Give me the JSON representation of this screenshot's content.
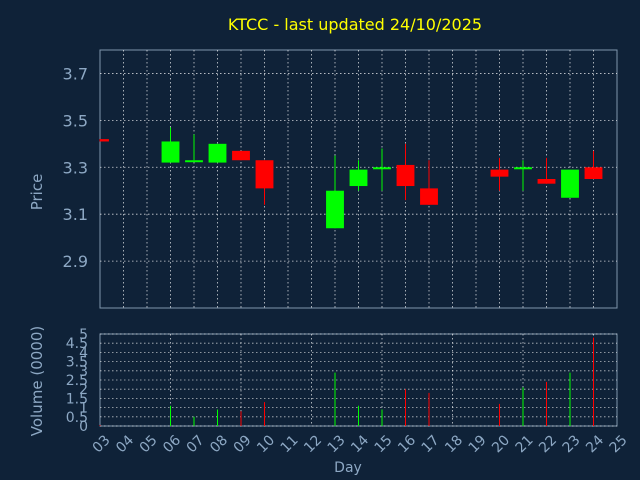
{
  "chart_data": {
    "type": "candlestick",
    "title": "KTCC - last updated 24/10/2025",
    "xlabel": "Day",
    "days": [
      "03",
      "04",
      "05",
      "06",
      "07",
      "08",
      "09",
      "10",
      "11",
      "12",
      "13",
      "14",
      "15",
      "16",
      "17",
      "18",
      "19",
      "20",
      "21",
      "22",
      "23",
      "24",
      "25"
    ],
    "price": {
      "ylabel": "Price",
      "ylim": [
        2.7,
        3.8
      ],
      "ticks": [
        "2.9",
        "3.1",
        "3.3",
        "3.5",
        "3.7"
      ],
      "candles": [
        {
          "day": "03",
          "open": 3.42,
          "high": 3.42,
          "low": 3.41,
          "close": 3.41
        },
        {
          "day": "06",
          "open": 3.32,
          "high": 3.47,
          "low": 3.32,
          "close": 3.41
        },
        {
          "day": "07",
          "open": 3.33,
          "high": 3.44,
          "low": 3.33,
          "close": 3.33
        },
        {
          "day": "08",
          "open": 3.32,
          "high": 3.4,
          "low": 3.32,
          "close": 3.4
        },
        {
          "day": "09",
          "open": 3.37,
          "high": 3.37,
          "low": 3.33,
          "close": 3.33
        },
        {
          "day": "10",
          "open": 3.33,
          "high": 3.33,
          "low": 3.14,
          "close": 3.21
        },
        {
          "day": "13",
          "open": 3.04,
          "high": 3.35,
          "low": 3.04,
          "close": 3.2
        },
        {
          "day": "14",
          "open": 3.22,
          "high": 3.33,
          "low": 3.2,
          "close": 3.29
        },
        {
          "day": "15",
          "open": 3.3,
          "high": 3.38,
          "low": 3.2,
          "close": 3.3
        },
        {
          "day": "16",
          "open": 3.31,
          "high": 3.4,
          "low": 3.16,
          "close": 3.22
        },
        {
          "day": "17",
          "open": 3.21,
          "high": 3.33,
          "low": 3.14,
          "close": 3.14
        },
        {
          "day": "20",
          "open": 3.29,
          "high": 3.34,
          "low": 3.2,
          "close": 3.26
        },
        {
          "day": "21",
          "open": 3.3,
          "high": 3.33,
          "low": 3.2,
          "close": 3.3
        },
        {
          "day": "22",
          "open": 3.25,
          "high": 3.34,
          "low": 3.23,
          "close": 3.23
        },
        {
          "day": "23",
          "open": 3.17,
          "high": 3.29,
          "low": 3.17,
          "close": 3.29
        },
        {
          "day": "24",
          "open": 3.3,
          "high": 3.37,
          "low": 3.25,
          "close": 3.25
        }
      ]
    },
    "volume": {
      "ylabel": "Volume (0000)",
      "ylim": [
        0,
        5
      ],
      "ticks": [
        "0",
        "0.5",
        "1",
        "1.5",
        "2",
        "2.5",
        "3",
        "3.5",
        "4",
        "4.5",
        "5"
      ],
      "bars": [
        {
          "day": "03",
          "value": 0.05
        },
        {
          "day": "06",
          "value": 1.1
        },
        {
          "day": "07",
          "value": 0.5
        },
        {
          "day": "08",
          "value": 0.9
        },
        {
          "day": "09",
          "value": 0.8
        },
        {
          "day": "10",
          "value": 1.3
        },
        {
          "day": "13",
          "value": 2.9
        },
        {
          "day": "14",
          "value": 1.1
        },
        {
          "day": "15",
          "value": 0.9
        },
        {
          "day": "16",
          "value": 2.0
        },
        {
          "day": "17",
          "value": 1.8
        },
        {
          "day": "20",
          "value": 1.2
        },
        {
          "day": "21",
          "value": 2.1
        },
        {
          "day": "22",
          "value": 2.4
        },
        {
          "day": "23",
          "value": 2.9
        },
        {
          "day": "24",
          "value": 4.8
        }
      ]
    },
    "grid": true,
    "colors": {
      "background": "#0f2238",
      "up": "#00ff00",
      "down": "#ff0000",
      "text": "#8da8c4",
      "title": "#ffff00",
      "grid": "#ffffff",
      "axis": "#7f95ad"
    }
  }
}
